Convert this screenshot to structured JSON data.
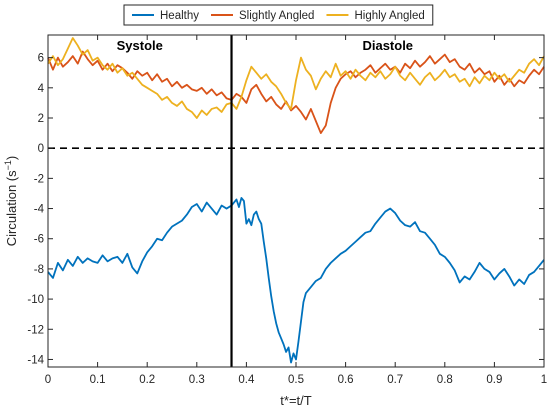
{
  "chart_data": {
    "type": "line",
    "xlabel": "t*=t/T",
    "ylabel": "Circulation (s",
    "ylabel_sup": "−1",
    "ylabel_close": ")",
    "xlim": [
      0,
      1
    ],
    "ylim": [
      -14.5,
      7.5
    ],
    "xticks": [
      "0",
      "0.1",
      "0.2",
      "0.3",
      "0.4",
      "0.5",
      "0.6",
      "0.7",
      "0.8",
      "0.9",
      "1"
    ],
    "xtick_values": [
      0,
      0.1,
      0.2,
      0.3,
      0.4,
      0.5,
      0.6,
      0.7,
      0.8,
      0.9,
      1
    ],
    "yticks": [
      "6",
      "4",
      "2",
      "0",
      "-2",
      "-4",
      "-6",
      "-8",
      "-10",
      "-12",
      "-14"
    ],
    "ytick_values": [
      6,
      4,
      2,
      0,
      -2,
      -4,
      -6,
      -8,
      -10,
      -12,
      -14
    ],
    "grid": false,
    "legend_position": "top",
    "zero_line": 0,
    "divider_x": 0.37,
    "annotations": {
      "systole": "Systole",
      "diastole": "Diastole"
    },
    "series": [
      {
        "name": "Healthy",
        "color": "#0072BD",
        "x": [
          0,
          0.01,
          0.02,
          0.03,
          0.04,
          0.05,
          0.06,
          0.07,
          0.08,
          0.09,
          0.1,
          0.11,
          0.12,
          0.13,
          0.14,
          0.15,
          0.16,
          0.17,
          0.18,
          0.19,
          0.2,
          0.21,
          0.22,
          0.23,
          0.24,
          0.25,
          0.26,
          0.27,
          0.28,
          0.29,
          0.3,
          0.31,
          0.32,
          0.33,
          0.34,
          0.35,
          0.36,
          0.37,
          0.38,
          0.385,
          0.39,
          0.395,
          0.4,
          0.405,
          0.41,
          0.415,
          0.42,
          0.425,
          0.43,
          0.435,
          0.44,
          0.445,
          0.45,
          0.455,
          0.46,
          0.465,
          0.47,
          0.475,
          0.48,
          0.485,
          0.49,
          0.495,
          0.5,
          0.505,
          0.51,
          0.515,
          0.52,
          0.53,
          0.54,
          0.55,
          0.56,
          0.57,
          0.58,
          0.59,
          0.6,
          0.61,
          0.62,
          0.63,
          0.64,
          0.65,
          0.66,
          0.67,
          0.68,
          0.69,
          0.7,
          0.71,
          0.72,
          0.73,
          0.74,
          0.75,
          0.76,
          0.77,
          0.78,
          0.79,
          0.8,
          0.81,
          0.82,
          0.83,
          0.84,
          0.85,
          0.86,
          0.87,
          0.88,
          0.89,
          0.9,
          0.91,
          0.92,
          0.93,
          0.94,
          0.95,
          0.96,
          0.97,
          0.98,
          0.99,
          1
        ],
        "y": [
          -8.2,
          -8.6,
          -7.6,
          -8.1,
          -7.4,
          -7.8,
          -7.2,
          -7.6,
          -7.3,
          -7.5,
          -7.6,
          -7.1,
          -7.5,
          -7.3,
          -7.2,
          -7.6,
          -7.0,
          -7.9,
          -8.3,
          -7.5,
          -6.9,
          -6.5,
          -6.0,
          -6.1,
          -5.6,
          -5.2,
          -5.0,
          -4.8,
          -4.4,
          -3.9,
          -3.7,
          -4.2,
          -3.6,
          -4.0,
          -4.4,
          -3.8,
          -4.0,
          -3.8,
          -3.4,
          -3.9,
          -3.3,
          -3.5,
          -5.0,
          -4.7,
          -5.1,
          -4.4,
          -4.2,
          -4.7,
          -5.0,
          -6.2,
          -7.3,
          -8.6,
          -9.8,
          -10.8,
          -11.6,
          -12.2,
          -12.6,
          -13.0,
          -13.5,
          -13.2,
          -14.2,
          -13.6,
          -14.0,
          -12.8,
          -11.5,
          -10.2,
          -9.6,
          -9.2,
          -8.8,
          -8.6,
          -8.0,
          -7.6,
          -7.3,
          -7.0,
          -6.8,
          -6.5,
          -6.2,
          -5.9,
          -5.6,
          -5.5,
          -5.0,
          -4.6,
          -4.2,
          -4.0,
          -4.3,
          -4.8,
          -5.1,
          -5.2,
          -4.9,
          -5.5,
          -5.6,
          -6.0,
          -6.4,
          -7.0,
          -7.2,
          -7.6,
          -8.1,
          -8.9,
          -8.5,
          -8.7,
          -8.2,
          -7.6,
          -8.0,
          -8.2,
          -8.7,
          -8.3,
          -8.0,
          -8.5,
          -9.1,
          -8.7,
          -9.0,
          -8.4,
          -8.2,
          -7.8,
          -7.4
        ]
      },
      {
        "name": "Slightly Angled",
        "color": "#D95319",
        "x": [
          0,
          0.01,
          0.02,
          0.03,
          0.04,
          0.05,
          0.06,
          0.07,
          0.08,
          0.09,
          0.1,
          0.11,
          0.12,
          0.13,
          0.14,
          0.15,
          0.16,
          0.17,
          0.18,
          0.19,
          0.2,
          0.21,
          0.22,
          0.23,
          0.24,
          0.25,
          0.26,
          0.27,
          0.28,
          0.29,
          0.3,
          0.31,
          0.32,
          0.33,
          0.34,
          0.35,
          0.36,
          0.37,
          0.38,
          0.39,
          0.4,
          0.41,
          0.42,
          0.43,
          0.44,
          0.45,
          0.46,
          0.47,
          0.48,
          0.49,
          0.5,
          0.51,
          0.52,
          0.53,
          0.54,
          0.55,
          0.56,
          0.57,
          0.58,
          0.59,
          0.6,
          0.61,
          0.62,
          0.63,
          0.64,
          0.65,
          0.66,
          0.67,
          0.68,
          0.69,
          0.7,
          0.71,
          0.72,
          0.73,
          0.74,
          0.75,
          0.76,
          0.77,
          0.78,
          0.79,
          0.8,
          0.81,
          0.82,
          0.83,
          0.84,
          0.85,
          0.86,
          0.87,
          0.88,
          0.89,
          0.9,
          0.91,
          0.92,
          0.93,
          0.94,
          0.95,
          0.96,
          0.97,
          0.98,
          0.99,
          1
        ],
        "y": [
          6.0,
          5.2,
          6.0,
          5.4,
          5.7,
          6.1,
          5.6,
          6.4,
          5.9,
          5.5,
          5.8,
          5.2,
          5.6,
          5.1,
          5.5,
          5.3,
          5.0,
          4.6,
          5.1,
          4.8,
          5.0,
          4.5,
          4.9,
          4.4,
          4.6,
          4.1,
          4.4,
          4.0,
          4.2,
          3.9,
          3.8,
          4.0,
          3.6,
          3.9,
          3.5,
          3.7,
          3.3,
          3.2,
          3.6,
          3.4,
          3.0,
          3.9,
          4.2,
          3.6,
          3.1,
          3.4,
          2.9,
          2.6,
          3.1,
          2.5,
          2.8,
          2.4,
          1.9,
          2.6,
          1.8,
          1.0,
          1.5,
          3.0,
          4.0,
          4.6,
          4.9,
          5.1,
          4.7,
          5.0,
          5.2,
          5.5,
          5.0,
          5.3,
          5.6,
          5.2,
          5.4,
          5.0,
          5.6,
          5.3,
          5.8,
          5.4,
          5.7,
          6.1,
          5.6,
          5.9,
          6.2,
          5.7,
          5.9,
          5.4,
          5.2,
          5.6,
          5.0,
          5.3,
          4.9,
          5.1,
          4.4,
          4.8,
          4.2,
          4.6,
          4.1,
          4.5,
          4.3,
          4.8,
          5.2,
          4.9,
          5.4
        ]
      },
      {
        "name": "Highly Angled",
        "color": "#EDB120",
        "x": [
          0,
          0.01,
          0.02,
          0.03,
          0.04,
          0.05,
          0.06,
          0.07,
          0.08,
          0.09,
          0.1,
          0.11,
          0.12,
          0.13,
          0.14,
          0.15,
          0.16,
          0.17,
          0.18,
          0.19,
          0.2,
          0.21,
          0.22,
          0.23,
          0.24,
          0.25,
          0.26,
          0.27,
          0.28,
          0.29,
          0.3,
          0.31,
          0.32,
          0.33,
          0.34,
          0.35,
          0.36,
          0.37,
          0.38,
          0.39,
          0.4,
          0.41,
          0.42,
          0.43,
          0.44,
          0.45,
          0.46,
          0.47,
          0.48,
          0.49,
          0.5,
          0.51,
          0.52,
          0.53,
          0.54,
          0.55,
          0.56,
          0.57,
          0.58,
          0.59,
          0.6,
          0.61,
          0.62,
          0.63,
          0.64,
          0.65,
          0.66,
          0.67,
          0.68,
          0.69,
          0.7,
          0.71,
          0.72,
          0.73,
          0.74,
          0.75,
          0.76,
          0.77,
          0.78,
          0.79,
          0.8,
          0.81,
          0.82,
          0.83,
          0.84,
          0.85,
          0.86,
          0.87,
          0.88,
          0.89,
          0.9,
          0.91,
          0.92,
          0.93,
          0.94,
          0.95,
          0.96,
          0.97,
          0.98,
          0.99,
          1
        ],
        "y": [
          5.6,
          6.1,
          5.5,
          5.9,
          6.6,
          7.3,
          6.8,
          6.2,
          6.5,
          5.8,
          6.0,
          5.5,
          5.2,
          5.6,
          5.0,
          5.3,
          4.8,
          5.0,
          4.6,
          4.2,
          4.0,
          3.8,
          3.6,
          3.2,
          3.4,
          3.0,
          2.8,
          3.1,
          2.6,
          2.4,
          2.0,
          2.5,
          2.2,
          2.6,
          2.7,
          2.4,
          2.9,
          3.0,
          2.6,
          3.4,
          4.5,
          5.4,
          5.0,
          4.6,
          4.9,
          4.4,
          4.1,
          3.6,
          3.0,
          2.6,
          4.5,
          6.0,
          5.2,
          4.8,
          3.9,
          4.6,
          5.1,
          4.7,
          5.6,
          4.8,
          5.1,
          4.6,
          5.2,
          4.8,
          4.5,
          5.0,
          4.7,
          5.1,
          4.6,
          4.9,
          5.4,
          4.8,
          4.5,
          5.0,
          4.6,
          4.2,
          4.7,
          5.0,
          4.5,
          4.8,
          5.2,
          4.7,
          4.9,
          4.4,
          4.6,
          4.1,
          4.7,
          4.3,
          4.8,
          4.5,
          5.0,
          4.6,
          4.9,
          4.4,
          4.8,
          5.2,
          5.0,
          5.6,
          5.9,
          5.5,
          6.1
        ]
      }
    ]
  }
}
